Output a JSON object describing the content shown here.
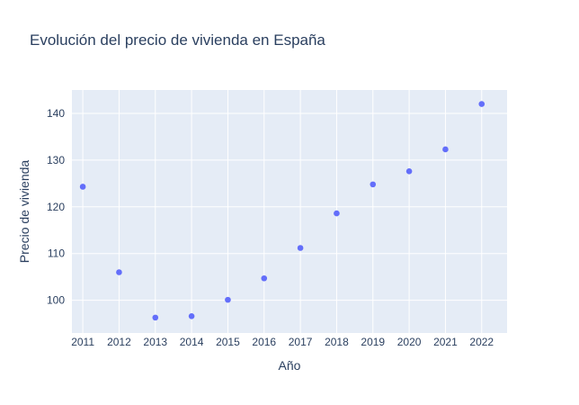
{
  "chart_data": {
    "type": "scatter",
    "title": "Evolución del precio de vivienda en España",
    "xlabel": "Año",
    "ylabel": "Precio de vivienda",
    "x": [
      2011,
      2012,
      2013,
      2014,
      2015,
      2016,
      2017,
      2018,
      2019,
      2020,
      2021,
      2022
    ],
    "y": [
      124.3,
      106.0,
      96.3,
      96.6,
      100.1,
      104.7,
      111.2,
      118.6,
      124.8,
      127.6,
      132.3,
      142.0
    ],
    "x_ticks": [
      "2011",
      "2012",
      "2013",
      "2014",
      "2015",
      "2016",
      "2017",
      "2018",
      "2019",
      "2020",
      "2021",
      "2022"
    ],
    "y_ticks": [
      "100",
      "110",
      "120",
      "130",
      "140"
    ],
    "xlim": [
      2010.7,
      2022.7
    ],
    "ylim": [
      93,
      145
    ],
    "grid": true,
    "colors": {
      "marker": "#636efa",
      "plot_background": "#e5ecf6",
      "grid": "#ffffff",
      "text": "#2a3f5f"
    }
  }
}
